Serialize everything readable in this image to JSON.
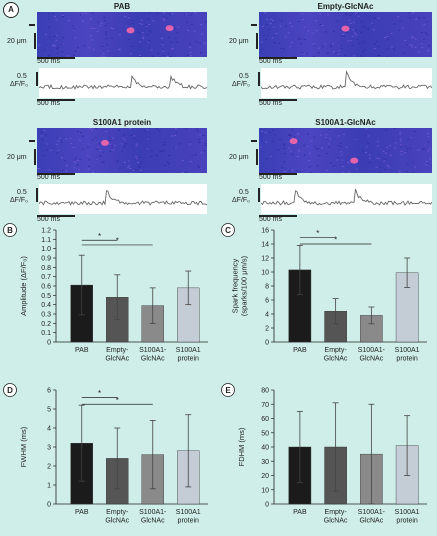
{
  "panel_a": {
    "label": "A",
    "images": [
      {
        "title": "PAB",
        "scale_um": "20 μm",
        "scale_ms": "500 ms",
        "dff_label": "ΔF/F₀",
        "dff_value": "0.5"
      },
      {
        "title": "Empty-GlcNAc",
        "scale_um": "20 μm",
        "scale_ms": "500 ms",
        "dff_label": "ΔF/F₀",
        "dff_value": "0.5"
      },
      {
        "title": "S100A1 protein",
        "scale_um": "20 μm",
        "scale_ms": "500 ms",
        "dff_label": "ΔF/F₀",
        "dff_value": "0.5"
      },
      {
        "title": "S100A1-GlcNAc",
        "scale_um": "20 μm",
        "scale_ms": "500 ms",
        "dff_label": "ΔF/F₀",
        "dff_value": "0.5"
      }
    ]
  },
  "chart_data": [
    {
      "panel": "B",
      "type": "bar",
      "ylabel": "Amplitude (ΔF/F₀)",
      "ylim": [
        0,
        1.2
      ],
      "yticks": [
        "0",
        "0.1",
        "0.2",
        "0.3",
        "0.4",
        "0.5",
        "0.6",
        "0.7",
        "0.8",
        "0.9",
        "1.0",
        "1.1",
        "1.2"
      ],
      "categories": [
        "PAB",
        "Empty-\nGlcNAc",
        "S100A1-\nGlcNAc",
        "S100A1\nprotein"
      ],
      "values": [
        0.61,
        0.48,
        0.39,
        0.58
      ],
      "errors": [
        0.32,
        0.24,
        0.19,
        0.18
      ],
      "significance": [
        {
          "from": 0,
          "to": 1,
          "level": 1.09,
          "mark": "*"
        },
        {
          "from": 0,
          "to": 2,
          "level": 1.04,
          "mark": "*"
        }
      ]
    },
    {
      "panel": "C",
      "type": "bar",
      "ylabel": "Spark frequency\n(sparks/100 μm/s)",
      "ylim": [
        0,
        16
      ],
      "yticks": [
        "0",
        "2",
        "4",
        "6",
        "8",
        "10",
        "12",
        "14",
        "16"
      ],
      "categories": [
        "PAB",
        "Empty-\nGlcNAc",
        "S100A1-\nGlcNAc",
        "S100A1\nprotein"
      ],
      "values": [
        10.3,
        4.4,
        3.8,
        9.9
      ],
      "errors": [
        3.5,
        1.8,
        1.2,
        2.1
      ],
      "significance": [
        {
          "from": 0,
          "to": 1,
          "level": 14.9,
          "mark": "*"
        },
        {
          "from": 0,
          "to": 2,
          "level": 14.0,
          "mark": "*"
        }
      ]
    },
    {
      "panel": "D",
      "type": "bar",
      "ylabel": "FWHM (ms)",
      "ylim": [
        0,
        6
      ],
      "yticks": [
        "0",
        "1",
        "2",
        "3",
        "4",
        "5",
        "6"
      ],
      "categories": [
        "PAB",
        "Empty-\nGlcNAc",
        "S100A1-\nGlcNAc",
        "S100A1\nprotein"
      ],
      "values": [
        3.2,
        2.4,
        2.6,
        2.8
      ],
      "errors": [
        2.0,
        1.6,
        1.8,
        1.9
      ],
      "significance": [
        {
          "from": 0,
          "to": 1,
          "level": 5.6,
          "mark": "*"
        },
        {
          "from": 0,
          "to": 2,
          "level": 5.25,
          "mark": "*"
        }
      ]
    },
    {
      "panel": "E",
      "type": "bar",
      "ylabel": "FDHM (ms)",
      "ylim": [
        0,
        80
      ],
      "yticks": [
        "0",
        "10",
        "20",
        "30",
        "40",
        "50",
        "60",
        "70",
        "80"
      ],
      "categories": [
        "PAB",
        "Empty-\nGlcNAc",
        "S100A1-\nGlcNAc",
        "S100A1\nprotein"
      ],
      "values": [
        40,
        40,
        35,
        41
      ],
      "errors": [
        25,
        31,
        35,
        21
      ],
      "significance": []
    }
  ],
  "colors": {
    "bars": [
      "#1b1b1b",
      "#555555",
      "#8a8a8a",
      "#c4ccd6"
    ],
    "background": "#cfeee9",
    "linescan": "#3c3fb8",
    "trace": "#666666"
  }
}
